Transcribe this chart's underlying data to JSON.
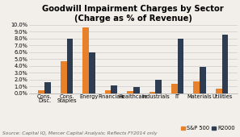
{
  "title": "Goodwill Impairment Charges by Sector",
  "subtitle": "(Charge as % of Revenue)",
  "categories": [
    "Cons.\nDisc.",
    "Cons.\nStaples",
    "Energy",
    "Financials",
    "Healthcare",
    "Industrials",
    "IT",
    "Materials",
    "Utilities"
  ],
  "sp500": [
    0.4,
    4.7,
    9.6,
    0.4,
    0.3,
    0.2,
    1.4,
    1.7,
    0.7
  ],
  "r2000": [
    1.6,
    8.0,
    6.0,
    1.1,
    0.9,
    2.0,
    8.0,
    3.8,
    8.6
  ],
  "sp500_color": "#E8822A",
  "r2000_color": "#2E3D52",
  "ylim": [
    0,
    10.0
  ],
  "yticks": [
    0.0,
    1.0,
    2.0,
    3.0,
    4.0,
    5.0,
    6.0,
    7.0,
    8.0,
    9.0,
    10.0
  ],
  "source": "Source: Capital IQ, Mercer Capital Analysis; Reflects FY2014 only",
  "legend_sp500": "S&P 500",
  "legend_r2000": "R2000",
  "background_color": "#F2EFEA",
  "plot_bg_color": "#F2EFEA",
  "grid_color": "#CCCCCC",
  "title_fontsize": 7.2,
  "tick_fontsize": 4.8,
  "source_fontsize": 4.2,
  "legend_fontsize": 4.8
}
